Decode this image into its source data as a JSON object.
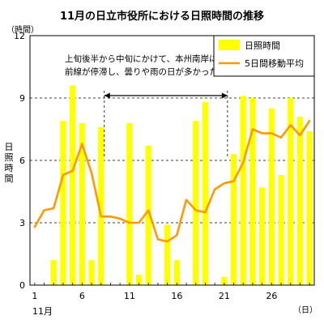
{
  "chart_data": {
    "type": "bar",
    "title": "11月の日立市役所における日照時間の推移",
    "ylabel": "日照時間",
    "y_unit": "（時間）",
    "x_unit": "（日）",
    "x_month": "11月",
    "ylim": [
      0,
      12
    ],
    "y_ticks": [
      0,
      3,
      6,
      9,
      12
    ],
    "x_ticks": [
      1,
      6,
      11,
      16,
      21,
      26
    ],
    "grid": "dashed at 3, 6, 9",
    "legend_position": "top-right",
    "annotation": [
      "上旬後半から中旬にかけて、本州南岸に",
      "前線が停滞し、曇りや雨の日が多かった"
    ],
    "annotation_range": [
      8,
      21
    ],
    "days": [
      1,
      2,
      3,
      4,
      5,
      6,
      7,
      8,
      9,
      10,
      11,
      12,
      13,
      14,
      15,
      16,
      17,
      18,
      19,
      20,
      21,
      22,
      23,
      24,
      25,
      26,
      27,
      28,
      29,
      30
    ],
    "series": [
      {
        "name": "日照時間",
        "kind": "bar",
        "color": "#ffff00",
        "values": [
          0,
          0,
          1.2,
          7.9,
          9.6,
          7.8,
          1.2,
          7.6,
          0,
          0,
          7.8,
          0.5,
          6.7,
          0,
          2.9,
          1.2,
          0,
          7.9,
          8.8,
          0,
          0.4,
          6.3,
          9.1,
          9.0,
          4.7,
          8.5,
          5.3,
          9.0,
          8.1,
          7.4
        ]
      },
      {
        "name": "5日間移動平均",
        "kind": "line",
        "color": "#ff9900",
        "values": [
          2.8,
          3.6,
          3.7,
          5.3,
          5.5,
          6.8,
          5.4,
          3.3,
          3.3,
          3.2,
          3.0,
          3.0,
          3.6,
          2.2,
          2.1,
          2.4,
          4.1,
          3.6,
          3.5,
          4.6,
          4.9,
          5.0,
          5.9,
          7.5,
          7.3,
          7.3,
          7.1,
          7.7,
          7.2,
          7.9
        ]
      }
    ]
  }
}
